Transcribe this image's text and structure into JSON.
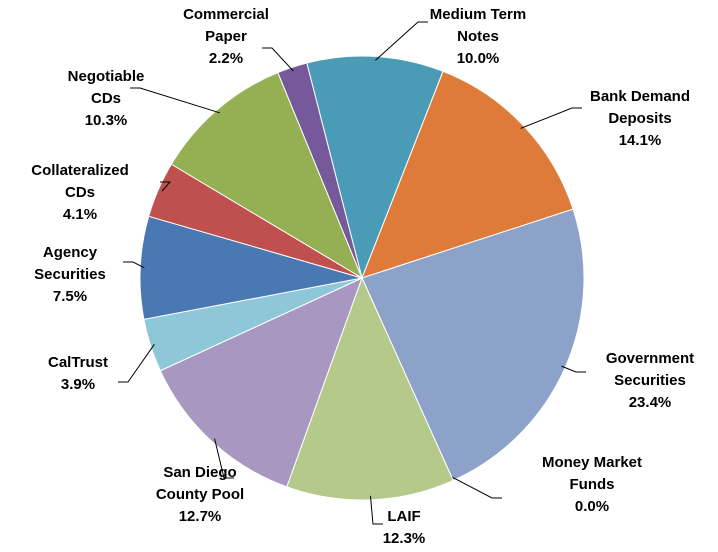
{
  "chart_data": {
    "type": "pie",
    "categories": [
      "Medium Term Notes",
      "Bank Demand Deposits",
      "Government Securities",
      "Money Market Funds",
      "LAIF",
      "San Diego County Pool",
      "CalTrust",
      "Agency Securities",
      "Collateralized CDs",
      "Negotiable CDs",
      "Commercial Paper"
    ],
    "values": [
      10.0,
      14.1,
      23.4,
      0.0,
      12.3,
      12.7,
      3.9,
      7.5,
      4.1,
      10.3,
      2.2
    ],
    "value_labels": [
      "10.0%",
      "14.1%",
      "23.4%",
      "0.0%",
      "12.3%",
      "12.7%",
      "3.9%",
      "7.5%",
      "4.1%",
      "10.3%",
      "2.2%"
    ],
    "colors": [
      "#4a9bb5",
      "#df7b3a",
      "#8ca2c8",
      "#c9c9c9",
      "#b4c98a",
      "#a898c1",
      "#8ec7d7",
      "#4a78b3",
      "#c0504d",
      "#94b052",
      "#76599a"
    ]
  }
}
